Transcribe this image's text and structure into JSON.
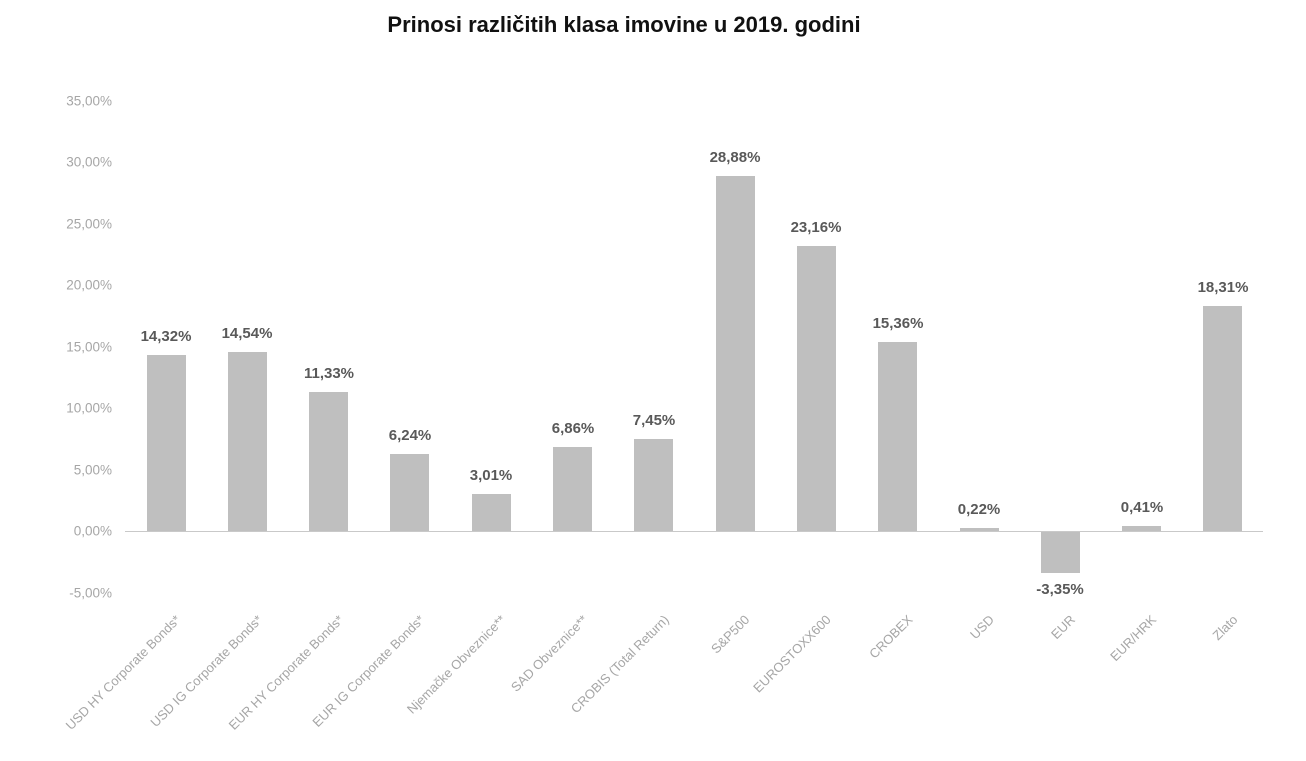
{
  "title": "Prinosi različitih klasa imovine u 2019. godini",
  "chart_data": {
    "type": "bar",
    "title": "Prinosi različitih klasa imovine u 2019. godini",
    "categories": [
      "USD HY Corporate Bonds*",
      "USD IG Corporate Bonds*",
      "EUR HY Corporate Bonds*",
      "EUR IG Corporate Bonds*",
      "Njemačke Obveznice**",
      "SAD Obveznice**",
      "CROBIS (Total Return)",
      "S&P500",
      "EUROSTOXX600",
      "CROBEX",
      "USD",
      "EUR",
      "EUR/HRK",
      "Zlato"
    ],
    "values": [
      14.32,
      14.54,
      11.33,
      6.24,
      3.01,
      6.86,
      7.45,
      28.88,
      23.16,
      15.36,
      0.22,
      -3.35,
      0.41,
      18.31
    ],
    "value_labels": [
      "14,32%",
      "14,54%",
      "11,33%",
      "6,24%",
      "3,01%",
      "6,86%",
      "7,45%",
      "28,88%",
      "23,16%",
      "15,36%",
      "0,22%",
      "-3,35%",
      "0,41%",
      "18,31%"
    ],
    "xlabel": "",
    "ylabel": "",
    "ylim": [
      -5,
      35
    ],
    "y_tick_values": [
      35,
      30,
      25,
      20,
      15,
      10,
      5,
      0,
      -5
    ],
    "y_tick_labels": [
      "35,00%",
      "30,00%",
      "25,00%",
      "20,00%",
      "15,00%",
      "10,00%",
      "5,00%",
      "0,00%",
      "-5,00%"
    ],
    "grid": false,
    "legend": null,
    "bar_color": "#bfbfbf",
    "value_label_color": "#595959",
    "axis_text_color": "#a6a6a6",
    "axis_line_color": "#c9c9c9",
    "title_color": "#111111"
  }
}
